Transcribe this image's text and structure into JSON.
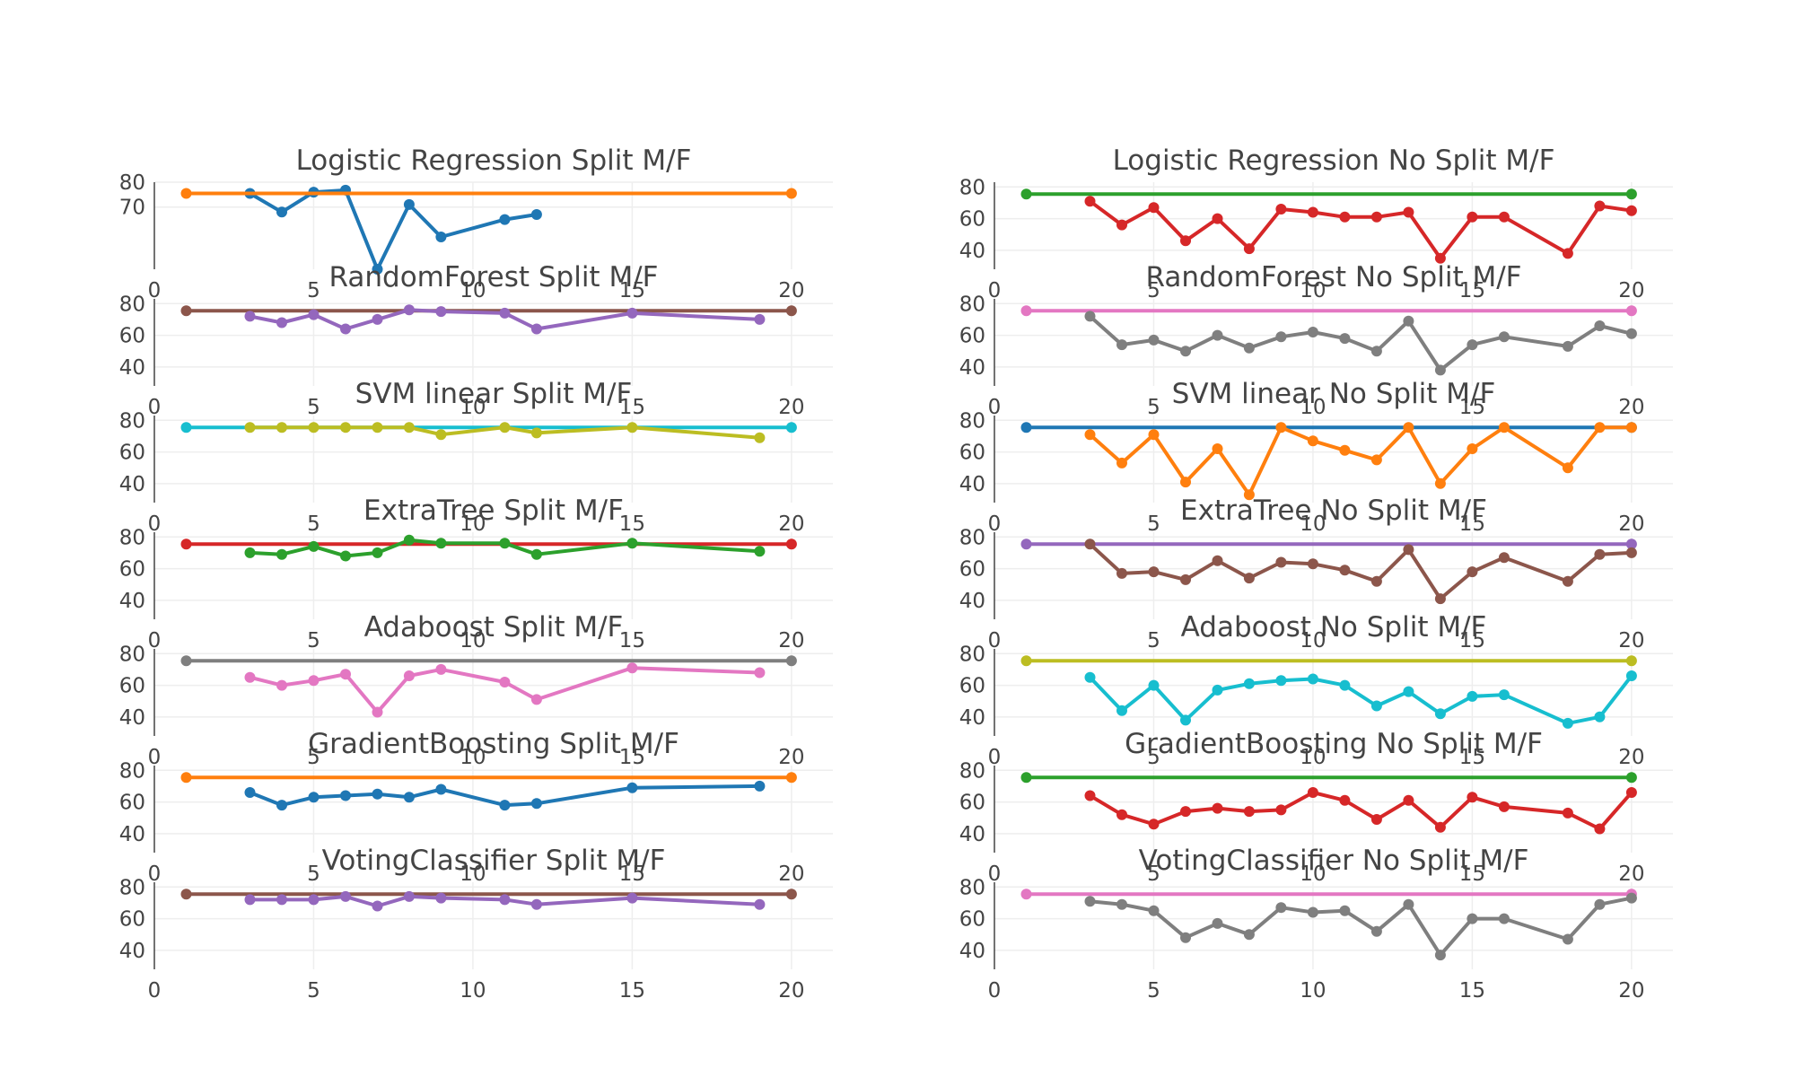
{
  "colors": {
    "c_blue": "#1f77b4",
    "c_orange": "#ff7f0e",
    "c_green": "#2ca02c",
    "c_red": "#d62728",
    "c_purple": "#9467bd",
    "c_brown": "#8c564b",
    "c_pink": "#e377c2",
    "c_gray": "#7f7f7f",
    "c_olive": "#bcbd22",
    "c_cyan": "#17becf"
  },
  "chart_data": [
    {
      "type": "line",
      "title": "Logistic Regression Split M/F",
      "grid": true,
      "legend": "none",
      "xlim": [
        0,
        21.3
      ],
      "ylim": [
        45,
        80
      ],
      "xticks": [
        0,
        5,
        10,
        15,
        20
      ],
      "yticks": [
        70,
        80
      ],
      "series": [
        {
          "color": "#1f77b4",
          "x": [
            3,
            4,
            5,
            6,
            7,
            8,
            9,
            11,
            12
          ],
          "y": [
            75.5,
            68,
            76,
            76.8,
            45,
            71,
            58,
            65,
            67
          ]
        },
        {
          "color": "#ff7f0e",
          "x": [
            1,
            20
          ],
          "y": [
            75.5,
            75.5
          ]
        }
      ]
    },
    {
      "type": "line",
      "title": "Logistic Regression No Split M/F",
      "grid": true,
      "legend": "none",
      "xlim": [
        0,
        21.3
      ],
      "ylim": [
        28,
        83
      ],
      "xticks": [
        0,
        5,
        10,
        15,
        20
      ],
      "yticks": [
        40,
        60,
        80
      ],
      "series": [
        {
          "color": "#2ca02c",
          "x": [
            1,
            20
          ],
          "y": [
            75.5,
            75.5
          ]
        },
        {
          "color": "#d62728",
          "x": [
            3,
            4,
            5,
            6,
            7,
            8,
            9,
            10,
            11,
            12,
            13,
            14,
            15,
            16,
            18,
            19,
            20
          ],
          "y": [
            71,
            56,
            67,
            46,
            60,
            41,
            66,
            64,
            61,
            61,
            64,
            35,
            61,
            61,
            38,
            68,
            65
          ]
        }
      ]
    },
    {
      "type": "line",
      "title": "RandomForest Split M/F",
      "grid": true,
      "legend": "none",
      "xlim": [
        0,
        21.3
      ],
      "ylim": [
        28,
        83
      ],
      "xticks": [
        0,
        5,
        10,
        15,
        20
      ],
      "yticks": [
        40,
        60,
        80
      ],
      "series": [
        {
          "color": "#8c564b",
          "x": [
            1,
            20
          ],
          "y": [
            75.5,
            75.5
          ]
        },
        {
          "color": "#9467bd",
          "x": [
            3,
            4,
            5,
            6,
            7,
            8,
            9,
            11,
            12,
            15,
            19
          ],
          "y": [
            72,
            68,
            73,
            64,
            70,
            76,
            75,
            74,
            64,
            74,
            70
          ]
        }
      ]
    },
    {
      "type": "line",
      "title": "RandomForest No Split M/F",
      "grid": true,
      "legend": "none",
      "xlim": [
        0,
        21.3
      ],
      "ylim": [
        28,
        83
      ],
      "xticks": [
        0,
        5,
        10,
        15,
        20
      ],
      "yticks": [
        40,
        60,
        80
      ],
      "series": [
        {
          "color": "#e377c2",
          "x": [
            1,
            20
          ],
          "y": [
            75.5,
            75.5
          ]
        },
        {
          "color": "#7f7f7f",
          "x": [
            3,
            4,
            5,
            6,
            7,
            8,
            9,
            10,
            11,
            12,
            13,
            14,
            15,
            16,
            18,
            19,
            20
          ],
          "y": [
            72,
            54,
            57,
            50,
            60,
            52,
            59,
            62,
            58,
            50,
            69,
            38,
            54,
            59,
            53,
            66,
            61
          ]
        }
      ]
    },
    {
      "type": "line",
      "title": "SVM linear Split M/F",
      "grid": true,
      "legend": "none",
      "xlim": [
        0,
        21.3
      ],
      "ylim": [
        28,
        83
      ],
      "xticks": [
        0,
        5,
        10,
        15,
        20
      ],
      "yticks": [
        40,
        60,
        80
      ],
      "series": [
        {
          "color": "#17becf",
          "x": [
            1,
            20
          ],
          "y": [
            75.5,
            75.5
          ]
        },
        {
          "color": "#bcbd22",
          "x": [
            3,
            4,
            5,
            6,
            7,
            8,
            9,
            11,
            12,
            15,
            19
          ],
          "y": [
            75.5,
            75.5,
            75.5,
            75.5,
            75.5,
            75.5,
            71,
            75.5,
            72,
            75.5,
            69
          ]
        }
      ]
    },
    {
      "type": "line",
      "title": "SVM linear No Split M/F",
      "grid": true,
      "legend": "none",
      "xlim": [
        0,
        21.3
      ],
      "ylim": [
        28,
        83
      ],
      "xticks": [
        0,
        5,
        10,
        15,
        20
      ],
      "yticks": [
        40,
        60,
        80
      ],
      "series": [
        {
          "color": "#1f77b4",
          "x": [
            1,
            20
          ],
          "y": [
            75.5,
            75.5
          ]
        },
        {
          "color": "#ff7f0e",
          "x": [
            3,
            4,
            5,
            6,
            7,
            8,
            9,
            10,
            11,
            12,
            13,
            14,
            15,
            16,
            18,
            19,
            20
          ],
          "y": [
            71,
            53,
            71,
            41,
            62,
            33,
            75.5,
            67,
            61,
            55,
            75.5,
            40,
            62,
            75.5,
            50,
            75.5,
            75.5
          ]
        }
      ]
    },
    {
      "type": "line",
      "title": "ExtraTree Split M/F",
      "grid": true,
      "legend": "none",
      "xlim": [
        0,
        21.3
      ],
      "ylim": [
        28,
        83
      ],
      "xticks": [
        0,
        5,
        10,
        15,
        20
      ],
      "yticks": [
        40,
        60,
        80
      ],
      "series": [
        {
          "color": "#d62728",
          "x": [
            1,
            20
          ],
          "y": [
            75.5,
            75.5
          ]
        },
        {
          "color": "#2ca02c",
          "x": [
            3,
            4,
            5,
            6,
            7,
            8,
            9,
            11,
            12,
            15,
            19
          ],
          "y": [
            70,
            69,
            74,
            68,
            70,
            78,
            76,
            76,
            69,
            76,
            71
          ]
        }
      ]
    },
    {
      "type": "line",
      "title": "ExtraTree No Split M/F",
      "grid": true,
      "legend": "none",
      "xlim": [
        0,
        21.3
      ],
      "ylim": [
        28,
        83
      ],
      "xticks": [
        0,
        5,
        10,
        15,
        20
      ],
      "yticks": [
        40,
        60,
        80
      ],
      "series": [
        {
          "color": "#9467bd",
          "x": [
            1,
            20
          ],
          "y": [
            75.5,
            75.5
          ]
        },
        {
          "color": "#8c564b",
          "x": [
            3,
            4,
            5,
            6,
            7,
            8,
            9,
            10,
            11,
            12,
            13,
            14,
            15,
            16,
            18,
            19,
            20
          ],
          "y": [
            75.5,
            57,
            58,
            53,
            65,
            54,
            64,
            63,
            59,
            52,
            72,
            41,
            58,
            67,
            52,
            69,
            70
          ]
        }
      ]
    },
    {
      "type": "line",
      "title": "Adaboost Split M/F",
      "grid": true,
      "legend": "none",
      "xlim": [
        0,
        21.3
      ],
      "ylim": [
        28,
        83
      ],
      "xticks": [
        0,
        5,
        10,
        15,
        20
      ],
      "yticks": [
        40,
        60,
        80
      ],
      "series": [
        {
          "color": "#7f7f7f",
          "x": [
            1,
            20
          ],
          "y": [
            75.5,
            75.5
          ]
        },
        {
          "color": "#e377c2",
          "x": [
            3,
            4,
            5,
            6,
            7,
            8,
            9,
            11,
            12,
            15,
            19
          ],
          "y": [
            65,
            60,
            63,
            67,
            43,
            66,
            70,
            62,
            51,
            71,
            68
          ]
        }
      ]
    },
    {
      "type": "line",
      "title": "Adaboost No Split M/F",
      "grid": true,
      "legend": "none",
      "xlim": [
        0,
        21.3
      ],
      "ylim": [
        28,
        83
      ],
      "xticks": [
        0,
        5,
        10,
        15,
        20
      ],
      "yticks": [
        40,
        60,
        80
      ],
      "series": [
        {
          "color": "#bcbd22",
          "x": [
            1,
            20
          ],
          "y": [
            75.5,
            75.5
          ]
        },
        {
          "color": "#17becf",
          "x": [
            3,
            4,
            5,
            6,
            7,
            8,
            9,
            10,
            11,
            12,
            13,
            14,
            15,
            16,
            18,
            19,
            20
          ],
          "y": [
            65,
            44,
            60,
            38,
            57,
            61,
            63,
            64,
            60,
            47,
            56,
            42,
            53,
            54,
            36,
            40,
            66
          ]
        }
      ]
    },
    {
      "type": "line",
      "title": "GradientBoosting Split M/F",
      "grid": true,
      "legend": "none",
      "xlim": [
        0,
        21.3
      ],
      "ylim": [
        28,
        83
      ],
      "xticks": [
        0,
        5,
        10,
        15,
        20
      ],
      "yticks": [
        40,
        60,
        80
      ],
      "series": [
        {
          "color": "#ff7f0e",
          "x": [
            1,
            20
          ],
          "y": [
            75.5,
            75.5
          ]
        },
        {
          "color": "#1f77b4",
          "x": [
            3,
            4,
            5,
            6,
            7,
            8,
            9,
            11,
            12,
            15,
            19
          ],
          "y": [
            66,
            58,
            63,
            64,
            65,
            63,
            68,
            58,
            59,
            69,
            70
          ]
        }
      ]
    },
    {
      "type": "line",
      "title": "GradientBoosting No Split M/F",
      "grid": true,
      "legend": "none",
      "xlim": [
        0,
        21.3
      ],
      "ylim": [
        28,
        83
      ],
      "xticks": [
        0,
        5,
        10,
        15,
        20
      ],
      "yticks": [
        40,
        60,
        80
      ],
      "series": [
        {
          "color": "#2ca02c",
          "x": [
            1,
            20
          ],
          "y": [
            75.5,
            75.5
          ]
        },
        {
          "color": "#d62728",
          "x": [
            3,
            4,
            5,
            6,
            7,
            8,
            9,
            10,
            11,
            12,
            13,
            14,
            15,
            16,
            18,
            19,
            20
          ],
          "y": [
            64,
            52,
            46,
            54,
            56,
            54,
            55,
            66,
            61,
            49,
            61,
            44,
            63,
            57,
            53,
            43,
            66
          ]
        }
      ]
    },
    {
      "type": "line",
      "title": "VotingClassifier Split M/F",
      "grid": true,
      "legend": "none",
      "xlim": [
        0,
        21.3
      ],
      "ylim": [
        28,
        83
      ],
      "xticks": [
        0,
        5,
        10,
        15,
        20
      ],
      "yticks": [
        40,
        60,
        80
      ],
      "series": [
        {
          "color": "#8c564b",
          "x": [
            1,
            20
          ],
          "y": [
            75.5,
            75.5
          ]
        },
        {
          "color": "#9467bd",
          "x": [
            3,
            4,
            5,
            6,
            7,
            8,
            9,
            11,
            12,
            15,
            19
          ],
          "y": [
            72,
            72,
            72,
            74,
            68,
            74,
            73,
            72,
            69,
            73,
            69
          ]
        }
      ]
    },
    {
      "type": "line",
      "title": "VotingClassifier No Split M/F",
      "grid": true,
      "legend": "none",
      "xlim": [
        0,
        21.3
      ],
      "ylim": [
        28,
        83
      ],
      "xticks": [
        0,
        5,
        10,
        15,
        20
      ],
      "yticks": [
        40,
        60,
        80
      ],
      "series": [
        {
          "color": "#e377c2",
          "x": [
            1,
            20
          ],
          "y": [
            75.5,
            75.5
          ]
        },
        {
          "color": "#7f7f7f",
          "x": [
            3,
            4,
            5,
            6,
            7,
            8,
            9,
            10,
            11,
            12,
            13,
            14,
            15,
            16,
            18,
            19,
            20
          ],
          "y": [
            71,
            69,
            65,
            48,
            57,
            50,
            67,
            64,
            65,
            52,
            69,
            37,
            60,
            60,
            47,
            69,
            73
          ]
        }
      ]
    }
  ]
}
